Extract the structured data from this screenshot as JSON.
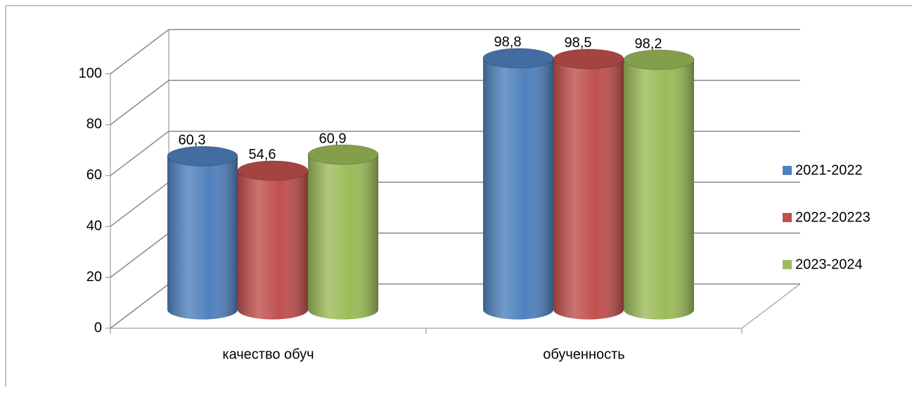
{
  "chart_data": {
    "type": "bar3d_cylinder",
    "categories": [
      "качество обуч",
      "обученность"
    ],
    "series": [
      {
        "name": "2021-2022",
        "color": "#4f81bd",
        "values": [
          60.3,
          98.8
        ],
        "value_labels": [
          "60,3",
          "98,8"
        ]
      },
      {
        "name": "2022-20223",
        "color": "#c0504d",
        "values": [
          54.6,
          98.5
        ],
        "value_labels": [
          "54,6",
          "98,5"
        ]
      },
      {
        "name": "2023-2024",
        "color": "#9bbb59",
        "values": [
          60.9,
          98.2
        ],
        "value_labels": [
          "60,9",
          "98,2"
        ]
      }
    ],
    "ylim": [
      0,
      100
    ],
    "yticks": [
      0,
      20,
      40,
      60,
      80,
      100
    ],
    "grid": true,
    "legend": "right"
  }
}
